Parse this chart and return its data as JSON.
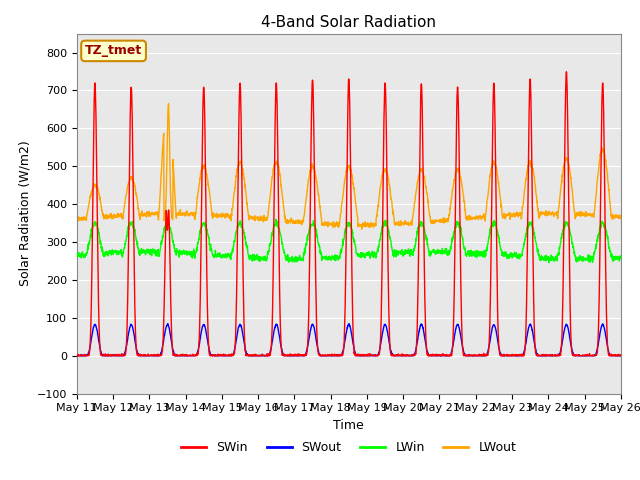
{
  "title": "4-Band Solar Radiation",
  "xlabel": "Time",
  "ylabel": "Solar Radiation (W/m2)",
  "ylim": [
    -100,
    850
  ],
  "yticks": [
    -100,
    0,
    100,
    200,
    300,
    400,
    500,
    600,
    700,
    800
  ],
  "background_color": "#ffffff",
  "plot_bg_color": "#e8e8e8",
  "grid_color": "#ffffff",
  "colors": {
    "SWin": "#ff0000",
    "SWout": "#0000ff",
    "LWin": "#00ff00",
    "LWout": "#ffa500"
  },
  "annotation_box": {
    "text": "TZ_tmet",
    "facecolor": "#ffffcc",
    "edgecolor": "#cc8800",
    "textcolor": "#990000",
    "fontsize": 9
  },
  "n_days": 15,
  "points_per_day": 144,
  "xtick_labels": [
    "May 11",
    "May 12",
    "May 13",
    "May 14",
    "May 15",
    "May 16",
    "May 17",
    "May 18",
    "May 19",
    "May 20",
    "May 21",
    "May 22",
    "May 23",
    "May 24",
    "May 25",
    "May 26"
  ],
  "legend_labels": [
    "SWin",
    "SWout",
    "LWin",
    "LWout"
  ]
}
